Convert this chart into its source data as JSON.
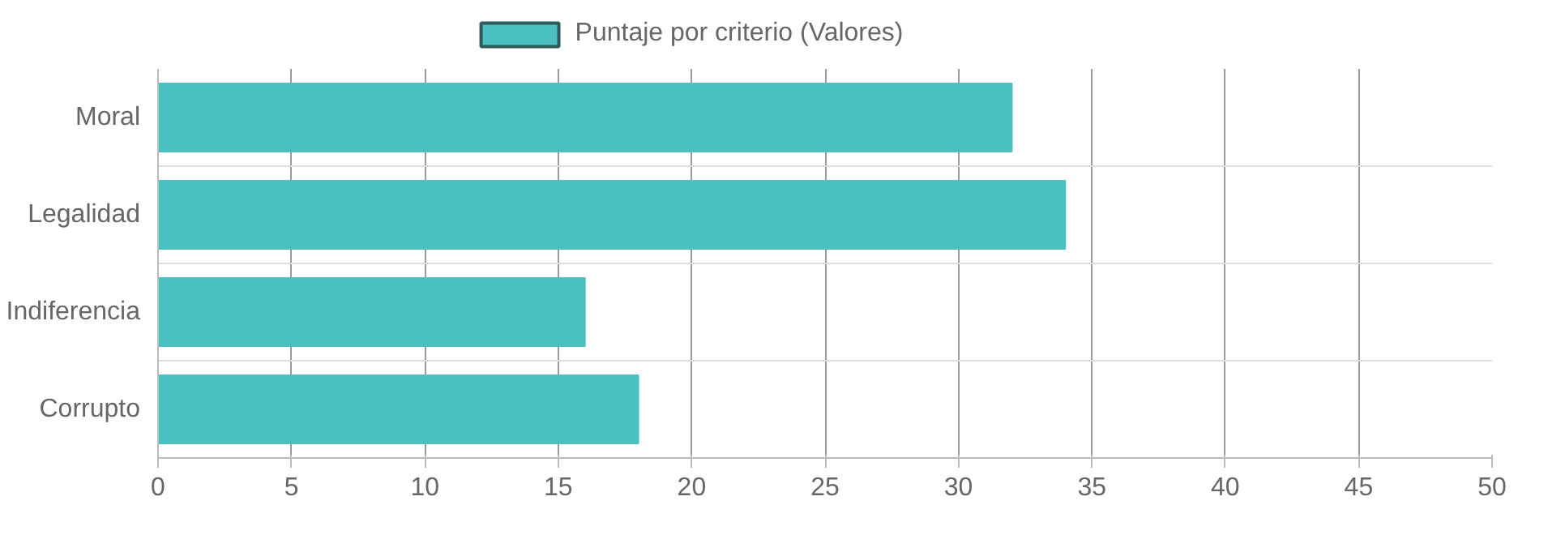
{
  "chart_data": {
    "type": "bar",
    "orientation": "horizontal",
    "categories": [
      "Moral",
      "Legalidad",
      "Indiferencia",
      "Corrupto"
    ],
    "series": [
      {
        "name": "Puntaje por criterio (Valores)",
        "color": "#4bc0c0",
        "values": [
          32,
          34,
          16,
          18
        ]
      }
    ],
    "xlim": [
      0,
      50
    ],
    "xticks": [
      0,
      5,
      10,
      15,
      20,
      25,
      30,
      35,
      40,
      45,
      50
    ],
    "grid": true,
    "legend": "top"
  }
}
